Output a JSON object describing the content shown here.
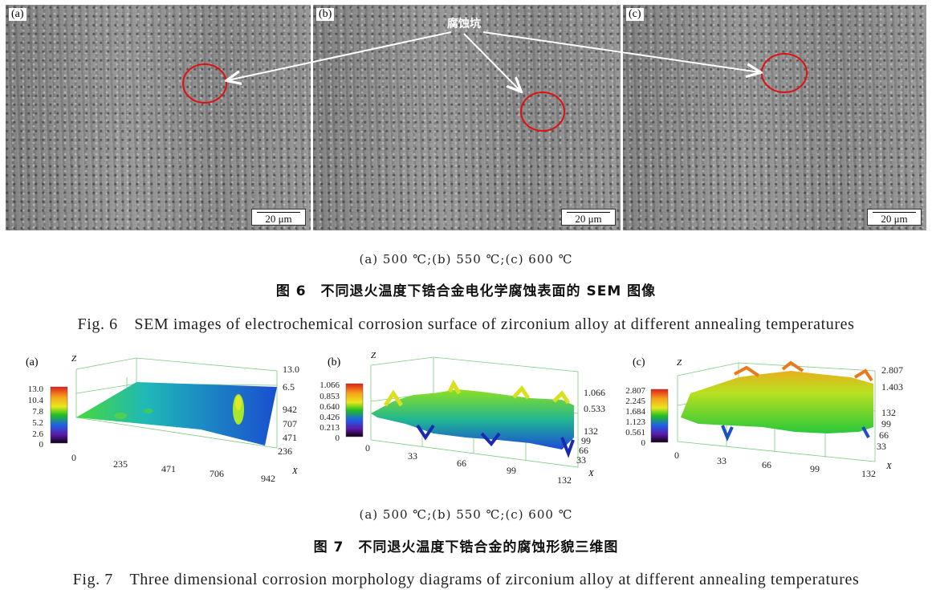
{
  "figure6": {
    "panels": [
      {
        "tag": "(a)",
        "scale": "20 μm"
      },
      {
        "tag": "(b)",
        "scale": "20 μm"
      },
      {
        "tag": "(c)",
        "scale": "20 μm"
      }
    ],
    "annotation": "腐蚀坑",
    "subcaption": "(a) 500 ℃;(b) 550 ℃;(c) 600 ℃",
    "caption_cn": "图 6　不同退火温度下锆合金电化学腐蚀表面的 SEM 图像",
    "caption_en": "Fig. 6　SEM images of electrochemical corrosion surface of zirconium alloy at different annealing temperatures"
  },
  "figure7": {
    "subcaption": "(a) 500 ℃;(b) 550 ℃;(c) 600 ℃",
    "caption_cn": "图 7　不同退火温度下锆合金的腐蚀形貌三维图",
    "caption_en": "Fig. 7　Three dimensional corrosion morphology diagrams of zirconium alloy at different annealing temperatures"
  },
  "chart_data": [
    {
      "type": "surface3d",
      "panel": "(a)",
      "z_axis_label": "Z",
      "x_axis_label": "X",
      "colorbar_ticks": [
        "13.0",
        "10.4",
        "7.8",
        "5.2",
        "2.6",
        "0"
      ],
      "z_ticks": [
        "13.0",
        "6.5"
      ],
      "x_ticks": [
        "0",
        "235",
        "471",
        "706",
        "942"
      ],
      "y_ticks": [
        "942",
        "707",
        "471",
        "236"
      ],
      "zlim": [
        0,
        13.0
      ]
    },
    {
      "type": "surface3d",
      "panel": "(b)",
      "z_axis_label": "Z",
      "x_axis_label": "X",
      "colorbar_ticks": [
        "1.066",
        "0.853",
        "0.640",
        "0.426",
        "0.213",
        "0"
      ],
      "z_ticks": [
        "1.066",
        "0.533"
      ],
      "x_ticks": [
        "0",
        "33",
        "66",
        "99",
        "132"
      ],
      "y_ticks": [
        "132",
        "99",
        "66",
        "33"
      ],
      "zlim": [
        0,
        1.066
      ]
    },
    {
      "type": "surface3d",
      "panel": "(c)",
      "z_axis_label": "Z",
      "x_axis_label": "X",
      "colorbar_ticks": [
        "2.807",
        "2.245",
        "1.684",
        "1.123",
        "0.561",
        "0"
      ],
      "z_ticks": [
        "2.807",
        "1.403"
      ],
      "x_ticks": [
        "0",
        "33",
        "66",
        "99",
        "132"
      ],
      "y_ticks": [
        "132",
        "99",
        "66",
        "33"
      ],
      "zlim": [
        0,
        2.807
      ]
    }
  ]
}
